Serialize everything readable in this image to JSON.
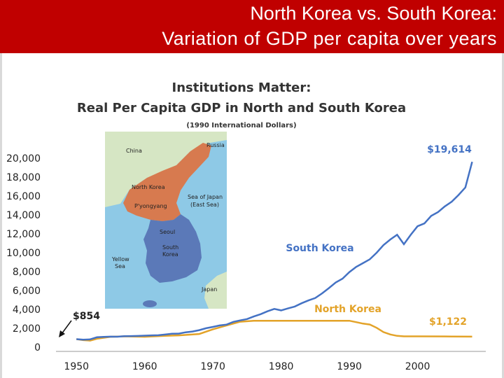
{
  "slide": {
    "title_line1": "North Korea vs. South Korea:",
    "title_line2": "Variation of GDP per capita over years",
    "title_bar_color": "#c00000"
  },
  "chart_data": {
    "type": "line",
    "title": "Institutions Matter:",
    "subtitle": "Real Per Capita GDP in North and South Korea",
    "units_note": "(1990 International Dollars)",
    "xlabel": "",
    "ylabel": "",
    "xlim": [
      1947,
      2010
    ],
    "ylim": [
      0,
      20000
    ],
    "x_ticks": [
      1950,
      1960,
      1970,
      1980,
      1990,
      2000
    ],
    "y_ticks": [
      0,
      2000,
      4000,
      6000,
      8000,
      10000,
      12000,
      14000,
      16000,
      18000,
      20000
    ],
    "y_tick_labels": [
      "0",
      "2,000",
      "4,000",
      "6,000",
      "8,000",
      "10,000",
      "12,000",
      "14,000",
      "16,000",
      "18,000",
      "20,000"
    ],
    "grid": false,
    "series": [
      {
        "name": "South Korea",
        "color": "#4472c4",
        "points": [
          [
            1950,
            854
          ],
          [
            1951,
            800
          ],
          [
            1952,
            830
          ],
          [
            1953,
            1050
          ],
          [
            1954,
            1090
          ],
          [
            1955,
            1120
          ],
          [
            1956,
            1110
          ],
          [
            1957,
            1160
          ],
          [
            1958,
            1180
          ],
          [
            1959,
            1190
          ],
          [
            1960,
            1220
          ],
          [
            1961,
            1250
          ],
          [
            1962,
            1270
          ],
          [
            1963,
            1340
          ],
          [
            1964,
            1420
          ],
          [
            1965,
            1440
          ],
          [
            1966,
            1580
          ],
          [
            1967,
            1660
          ],
          [
            1968,
            1810
          ],
          [
            1969,
            2010
          ],
          [
            1970,
            2150
          ],
          [
            1971,
            2300
          ],
          [
            1972,
            2390
          ],
          [
            1973,
            2680
          ],
          [
            1974,
            2840
          ],
          [
            1975,
            2980
          ],
          [
            1976,
            3250
          ],
          [
            1977,
            3500
          ],
          [
            1978,
            3800
          ],
          [
            1979,
            4050
          ],
          [
            1980,
            3900
          ],
          [
            1981,
            4100
          ],
          [
            1982,
            4300
          ],
          [
            1983,
            4650
          ],
          [
            1984,
            4950
          ],
          [
            1985,
            5200
          ],
          [
            1986,
            5700
          ],
          [
            1987,
            6250
          ],
          [
            1988,
            6850
          ],
          [
            1989,
            7250
          ],
          [
            1990,
            7950
          ],
          [
            1991,
            8500
          ],
          [
            1992,
            8900
          ],
          [
            1993,
            9300
          ],
          [
            1994,
            10000
          ],
          [
            1995,
            10800
          ],
          [
            1996,
            11400
          ],
          [
            1997,
            11900
          ],
          [
            1998,
            10900
          ],
          [
            1999,
            11900
          ],
          [
            2000,
            12800
          ],
          [
            2001,
            13100
          ],
          [
            2002,
            13900
          ],
          [
            2003,
            14300
          ],
          [
            2004,
            14900
          ],
          [
            2005,
            15400
          ],
          [
            2006,
            16100
          ],
          [
            2007,
            16900
          ],
          [
            2008,
            19614
          ]
        ]
      },
      {
        "name": "North Korea",
        "color": "#e3a329",
        "points": [
          [
            1950,
            854
          ],
          [
            1951,
            750
          ],
          [
            1952,
            700
          ],
          [
            1953,
            900
          ],
          [
            1954,
            1000
          ],
          [
            1955,
            1100
          ],
          [
            1957,
            1150
          ],
          [
            1960,
            1100
          ],
          [
            1963,
            1200
          ],
          [
            1965,
            1250
          ],
          [
            1968,
            1400
          ],
          [
            1970,
            1900
          ],
          [
            1972,
            2300
          ],
          [
            1974,
            2700
          ],
          [
            1976,
            2800
          ],
          [
            1980,
            2800
          ],
          [
            1985,
            2800
          ],
          [
            1990,
            2800
          ],
          [
            1991,
            2650
          ],
          [
            1992,
            2500
          ],
          [
            1993,
            2400
          ],
          [
            1994,
            2050
          ],
          [
            1995,
            1600
          ],
          [
            1996,
            1350
          ],
          [
            1997,
            1200
          ],
          [
            1998,
            1150
          ],
          [
            2000,
            1150
          ],
          [
            2005,
            1130
          ],
          [
            2008,
            1122
          ]
        ]
      }
    ],
    "annotations": [
      {
        "text": "$854",
        "x": 1950,
        "y": 854,
        "color": "#222222"
      },
      {
        "text": "$19,614",
        "x": 2008,
        "y": 19614,
        "color": "#4472c4"
      },
      {
        "text": "$1,122",
        "x": 2008,
        "y": 1122,
        "color": "#e3a329"
      }
    ]
  },
  "inset_map": {
    "labels": {
      "china": "China",
      "russia": "Russia",
      "north_korea": "North Korea",
      "pyongyang": "P'yongyang",
      "sea_of_japan": "Sea of Japan",
      "east_sea": "(East Sea)",
      "seoul": "Seoul",
      "south_korea_l1": "South",
      "south_korea_l2": "Korea",
      "yellow_sea_l1": "Yellow",
      "yellow_sea_l2": "Sea",
      "japan": "Japan"
    },
    "colors": {
      "sea": "#8ec9e6",
      "land": "#d6e6c4",
      "north_korea": "#d77a4f",
      "south_korea": "#5b79b8"
    }
  }
}
